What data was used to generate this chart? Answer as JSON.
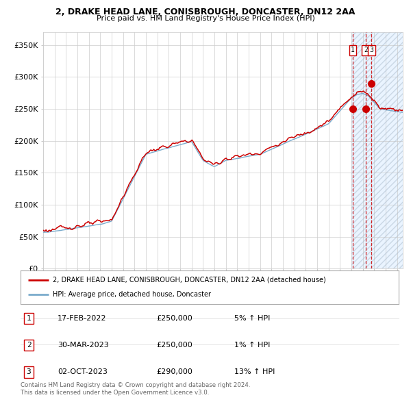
{
  "title": "2, DRAKE HEAD LANE, CONISBROUGH, DONCASTER, DN12 2AA",
  "subtitle": "Price paid vs. HM Land Registry's House Price Index (HPI)",
  "ylabel_ticks": [
    "£0",
    "£50K",
    "£100K",
    "£150K",
    "£200K",
    "£250K",
    "£300K",
    "£350K"
  ],
  "ytick_values": [
    0,
    50000,
    100000,
    150000,
    200000,
    250000,
    300000,
    350000
  ],
  "ylim": [
    0,
    370000
  ],
  "xlim_start": 1995.0,
  "xlim_end": 2026.5,
  "red_line_color": "#cc0000",
  "blue_line_color": "#7aabcc",
  "shade_color": "#ddeeff",
  "sale_dates_decimal": [
    2022.12,
    2023.25,
    2023.75
  ],
  "sale_prices": [
    250000,
    250000,
    290000
  ],
  "sale_labels": [
    "1",
    "2",
    "3"
  ],
  "shade_start": 2022.0,
  "legend_entries": [
    "2, DRAKE HEAD LANE, CONISBROUGH, DONCASTER, DN12 2AA (detached house)",
    "HPI: Average price, detached house, Doncaster"
  ],
  "table_data": [
    [
      "1",
      "17-FEB-2022",
      "£250,000",
      "5% ↑ HPI"
    ],
    [
      "2",
      "30-MAR-2023",
      "£250,000",
      "1% ↑ HPI"
    ],
    [
      "3",
      "02-OCT-2023",
      "£290,000",
      "13% ↑ HPI"
    ]
  ],
  "footer_text": "Contains HM Land Registry data © Crown copyright and database right 2024.\nThis data is licensed under the Open Government Licence v3.0.",
  "bg_color": "#ffffff",
  "grid_color": "#cccccc",
  "plot_bg_color": "#ffffff"
}
